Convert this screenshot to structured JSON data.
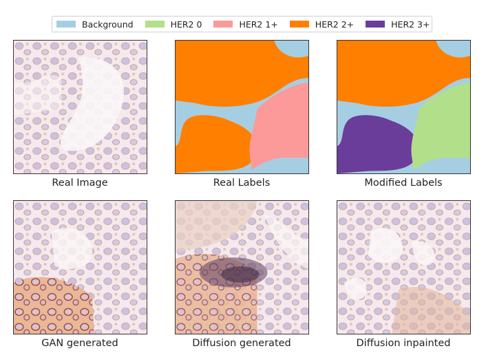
{
  "legend": {
    "items": [
      {
        "label": "Background",
        "color": "#a6cee3"
      },
      {
        "label": "HER2 0",
        "color": "#b2df8a"
      },
      {
        "label": "HER2 1+",
        "color": "#fb9a99"
      },
      {
        "label": "HER2 2+",
        "color": "#ff7f00"
      },
      {
        "label": "HER2 3+",
        "color": "#6a3d9a"
      }
    ]
  },
  "panels": {
    "real_image": {
      "caption": "Real Image"
    },
    "real_labels": {
      "caption": "Real Labels"
    },
    "modified_labels": {
      "caption": "Modified Labels"
    },
    "gan_generated": {
      "caption": "GAN generated"
    },
    "diffusion_generated": {
      "caption": "Diffusion generated"
    },
    "diffusion_inpainted": {
      "caption": "Diffusion inpainted"
    }
  }
}
